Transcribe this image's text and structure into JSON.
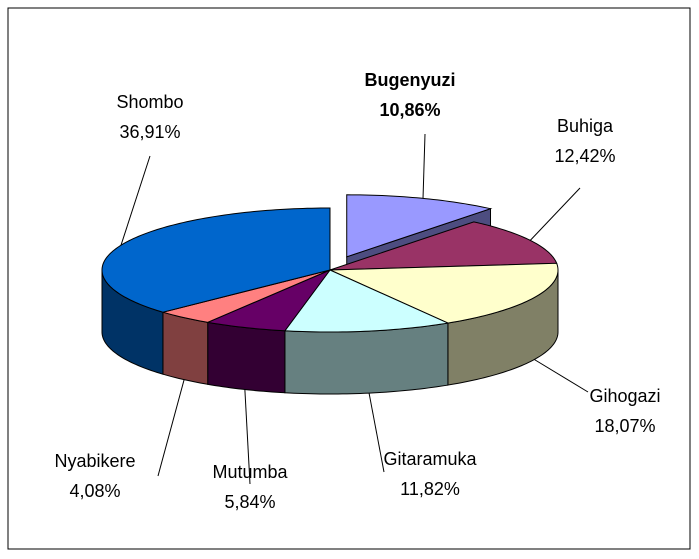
{
  "chart_data": {
    "type": "pie",
    "categories": [
      "Bugenyuzi",
      "Buhiga",
      "Gihogazi",
      "Gitaramuka",
      "Mutumba",
      "Nyabikere",
      "Shombo"
    ],
    "values": [
      10.86,
      12.42,
      18.07,
      11.82,
      5.84,
      4.08,
      36.91
    ],
    "value_labels": [
      "10,86%",
      "12,42%",
      "18,07%",
      "11,82%",
      "5,84%",
      "4,08%",
      "36,91%"
    ],
    "colors": [
      "#9999ff",
      "#993366",
      "#ffffcc",
      "#ccffff",
      "#660066",
      "#ff8080",
      "#0066cc"
    ],
    "explode": [
      true,
      false,
      false,
      false,
      false,
      false,
      false
    ]
  }
}
